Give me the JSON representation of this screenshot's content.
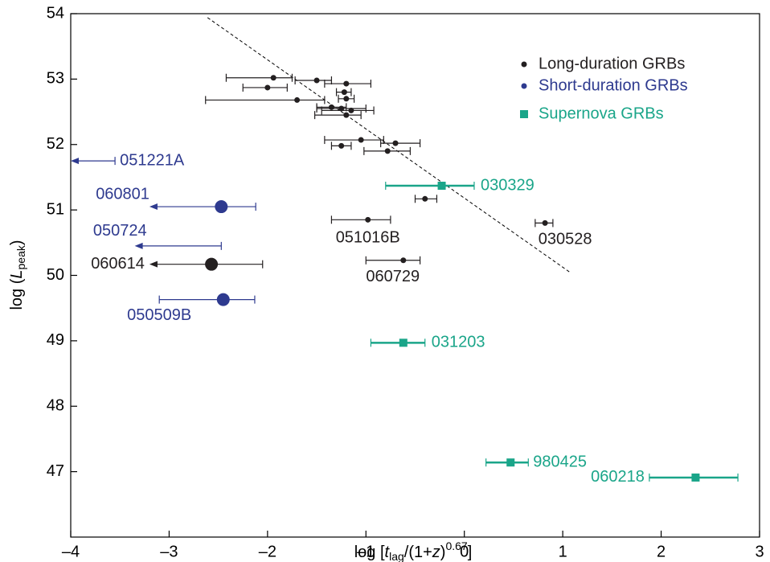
{
  "chart_data": {
    "type": "scatter",
    "xlabel": [
      "log [",
      "t",
      "lag",
      "/(1+",
      "z",
      ")",
      "0.67",
      "]"
    ],
    "ylabel": [
      "log (",
      "L",
      "peak",
      ")"
    ],
    "xlim": [
      -4,
      3
    ],
    "ylim": [
      46,
      54
    ],
    "xticks": [
      {
        "value": -4,
        "label": "–4"
      },
      {
        "value": -3,
        "label": "–3"
      },
      {
        "value": -2,
        "label": "–2"
      },
      {
        "value": -1,
        "label": "–1"
      },
      0,
      1,
      2,
      3
    ],
    "yticks": [
      47,
      48,
      49,
      50,
      51,
      52,
      53,
      54
    ],
    "fit_line": {
      "x": [
        -2.61,
        1.08
      ],
      "y": [
        53.94,
        50.04
      ]
    },
    "series": [
      {
        "name": "Long-duration GRBs",
        "color": "#231f20",
        "marker": "circle",
        "x": [
          -1.94,
          -1.5,
          -1.2,
          -2.0,
          -1.22,
          -1.2,
          -1.7,
          -1.25,
          -1.15,
          -1.35,
          -1.2,
          -1.05,
          -0.7,
          -1.25,
          -0.78,
          -0.4,
          -0.98,
          0.82,
          -0.62,
          -2.57
        ],
        "y": [
          53.02,
          52.98,
          52.93,
          52.87,
          52.8,
          52.7,
          52.68,
          52.55,
          52.52,
          52.57,
          52.45,
          52.07,
          52.02,
          51.98,
          51.9,
          51.17,
          50.85,
          50.8,
          50.23,
          50.17
        ],
        "x_low": [
          -2.42,
          -1.72,
          -1.42,
          -2.25,
          -1.3,
          -1.28,
          -2.63,
          -1.5,
          -1.45,
          -1.5,
          -1.52,
          -1.42,
          -0.85,
          -1.35,
          -1.02,
          -0.5,
          -1.35,
          0.72,
          -1.0,
          -3.2
        ],
        "x_high": [
          -1.75,
          -1.35,
          -0.95,
          -1.8,
          -1.15,
          -1.12,
          -1.42,
          -1.0,
          -0.92,
          -1.2,
          -1.05,
          -0.82,
          -0.45,
          -1.15,
          -0.55,
          -0.28,
          -0.75,
          0.9,
          -0.45,
          -2.05
        ],
        "upper_limit": [
          false,
          false,
          false,
          false,
          false,
          false,
          false,
          false,
          false,
          false,
          false,
          false,
          false,
          false,
          false,
          false,
          false,
          false,
          false,
          true
        ],
        "labels": [
          null,
          null,
          null,
          null,
          null,
          null,
          null,
          null,
          null,
          null,
          null,
          null,
          null,
          null,
          null,
          null,
          "051016B",
          "030528",
          "060729",
          "060614"
        ]
      },
      {
        "name": "Short-duration GRBs",
        "color": "#2e3a8f",
        "marker": "circle",
        "x": [
          null,
          -2.47,
          null,
          -2.45
        ],
        "y": [
          51.75,
          51.05,
          50.45,
          49.63
        ],
        "x_low": [
          -4.0,
          -3.2,
          -3.35,
          -3.1
        ],
        "x_high": [
          -3.55,
          -2.12,
          -2.47,
          -2.13
        ],
        "upper_limit": [
          true,
          true,
          true,
          false
        ],
        "labels": [
          "051221A",
          "060801",
          "050724",
          "050509B"
        ]
      },
      {
        "name": "Supernova GRBs",
        "color": "#1aa589",
        "marker": "square",
        "x": [
          -0.23,
          -0.62,
          0.47,
          2.35
        ],
        "y": [
          51.37,
          48.97,
          47.14,
          46.91
        ],
        "x_low": [
          -0.8,
          -0.95,
          0.22,
          1.88
        ],
        "x_high": [
          0.1,
          -0.4,
          0.65,
          2.78
        ],
        "upper_limit": [
          false,
          false,
          false,
          false
        ],
        "labels": [
          "030329",
          "031203",
          "980425",
          "060218"
        ]
      }
    ]
  }
}
